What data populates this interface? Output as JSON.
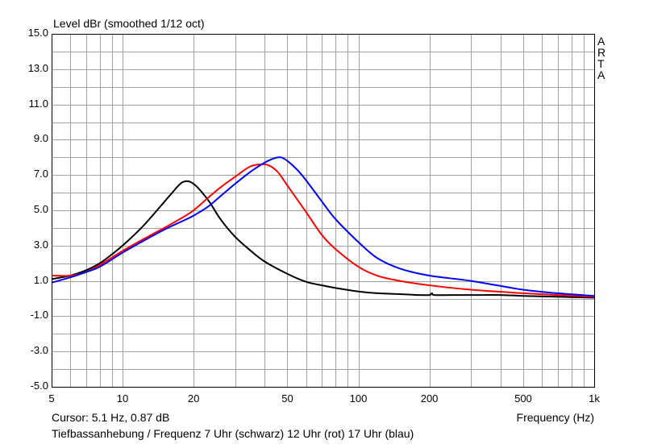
{
  "chart_data": {
    "type": "line",
    "title": "Level dBr (smoothed 1/12 oct)",
    "xlabel": "Frequency (Hz)",
    "ylabel": "",
    "xscale": "log",
    "xlim": [
      5,
      1000
    ],
    "ylim": [
      -5.0,
      15.0
    ],
    "x_ticks": [
      5,
      10,
      20,
      50,
      100,
      200,
      500,
      1000
    ],
    "x_tick_labels": [
      "5",
      "10",
      "20",
      "50",
      "100",
      "200",
      "500",
      "1k"
    ],
    "y_ticks": [
      -5.0,
      -3.0,
      -1.0,
      1.0,
      3.0,
      5.0,
      7.0,
      9.0,
      11.0,
      13.0,
      15.0
    ],
    "y_tick_labels": [
      "-5.0",
      "-3.0",
      "-1.0",
      "1.0",
      "3.0",
      "5.0",
      "7.0",
      "9.0",
      "11.0",
      "13.0",
      "15.0"
    ],
    "grid": true,
    "brand_vertical": [
      "A",
      "R",
      "T",
      "A"
    ],
    "cursor_text": "Cursor: 5.1 Hz, 0.87 dB",
    "caption": "Tiefbassanhebung / Frequenz 7 Uhr (schwarz) 12 Uhr (rot) 17 Uhr (blau)",
    "series": [
      {
        "color": "#000000",
        "x": [
          5,
          6,
          7,
          8,
          9,
          10,
          12,
          14,
          16,
          18,
          20,
          23,
          26,
          30,
          35,
          40,
          50,
          60,
          70,
          80,
          100,
          120,
          150,
          180,
          200,
          205,
          210,
          250,
          300,
          400,
          500,
          700,
          1000
        ],
        "y": [
          1.1,
          1.3,
          1.6,
          2.0,
          2.5,
          3.0,
          4.0,
          5.0,
          5.9,
          6.6,
          6.5,
          5.6,
          4.5,
          3.5,
          2.7,
          2.1,
          1.4,
          0.95,
          0.75,
          0.6,
          0.4,
          0.3,
          0.25,
          0.2,
          0.2,
          0.3,
          0.2,
          0.2,
          0.2,
          0.2,
          0.15,
          0.1,
          0.05
        ]
      },
      {
        "color": "#ff0000",
        "x": [
          5,
          6,
          7,
          8,
          10,
          12,
          15,
          18,
          20,
          23,
          26,
          30,
          35,
          40,
          43,
          46,
          50,
          60,
          70,
          80,
          100,
          120,
          150,
          200,
          300,
          500,
          700,
          1000
        ],
        "y": [
          1.3,
          1.3,
          1.5,
          1.9,
          2.7,
          3.3,
          4.0,
          4.6,
          5.0,
          5.7,
          6.3,
          6.9,
          7.5,
          7.6,
          7.45,
          7.1,
          6.4,
          4.9,
          3.6,
          2.8,
          1.8,
          1.3,
          1.0,
          0.75,
          0.5,
          0.3,
          0.2,
          0.1
        ]
      },
      {
        "color": "#0000ff",
        "x": [
          5,
          6,
          7,
          8,
          10,
          12,
          15,
          18,
          20,
          23,
          26,
          30,
          35,
          40,
          44,
          47,
          50,
          55,
          60,
          70,
          80,
          100,
          120,
          150,
          200,
          300,
          500,
          700,
          1000
        ],
        "y": [
          0.9,
          1.2,
          1.5,
          1.8,
          2.6,
          3.2,
          3.9,
          4.4,
          4.7,
          5.2,
          5.8,
          6.5,
          7.2,
          7.7,
          7.95,
          8.0,
          7.8,
          7.3,
          6.7,
          5.5,
          4.5,
          3.2,
          2.3,
          1.7,
          1.3,
          1.0,
          0.5,
          0.3,
          0.15
        ]
      }
    ]
  }
}
